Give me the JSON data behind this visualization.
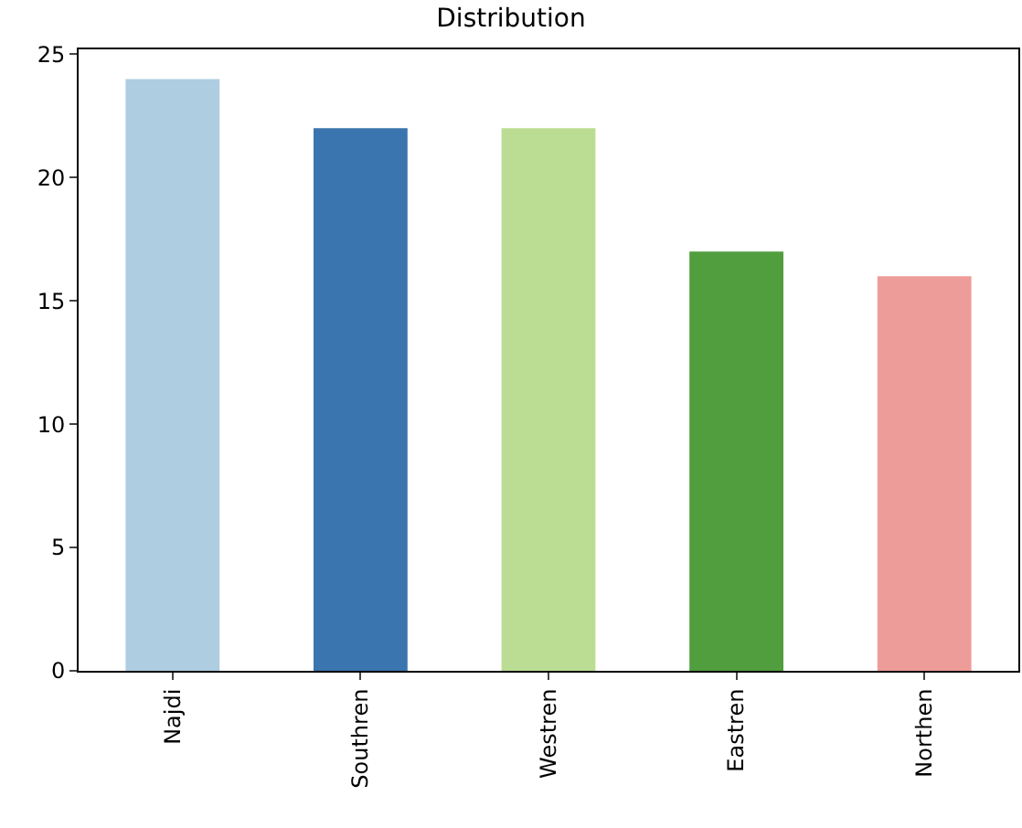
{
  "chart_data": {
    "type": "bar",
    "title": "Distribution",
    "categories": [
      "Najdi",
      "Southren",
      "Westren",
      "Eastren",
      "Northen"
    ],
    "values": [
      24,
      22,
      22,
      17,
      16
    ],
    "colors": [
      "#aecde1",
      "#3b75af",
      "#bbdd93",
      "#519e3e",
      "#ee9c99"
    ],
    "ylim": [
      0,
      25.2
    ],
    "yticks": [
      0,
      5,
      10,
      15,
      20,
      25
    ]
  }
}
